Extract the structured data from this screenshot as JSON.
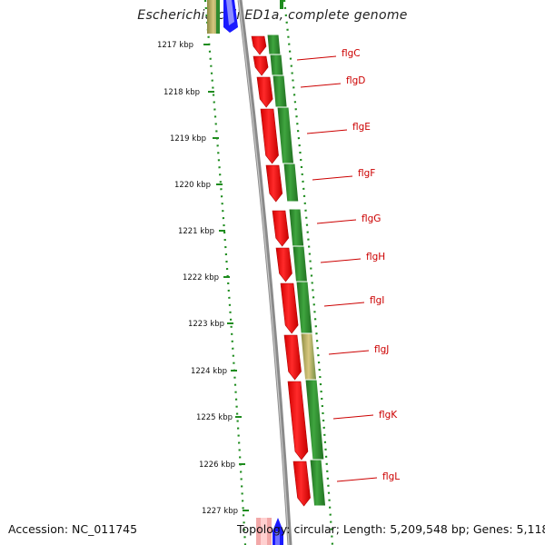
{
  "title": "Escherichia coli ED1a, complete genome",
  "footer": {
    "accession": "Accession: NC_011745",
    "info": "Topology: circular; Length: 5,209,548 bp; Genes: 5,118"
  },
  "scale_ticks": [
    "1217 kbp",
    "1218 kbp",
    "1219 kbp",
    "1220 kbp",
    "1221 kbp",
    "1222 kbp",
    "1223 kbp",
    "1224 kbp",
    "1225 kbp",
    "1226 kbp",
    "1227 kbp"
  ],
  "genes": [
    {
      "name": "flgC",
      "highlight": false
    },
    {
      "name": "flgD",
      "highlight": false
    },
    {
      "name": "flgE",
      "highlight": false
    },
    {
      "name": "flgF",
      "highlight": false
    },
    {
      "name": "flgG",
      "highlight": false
    },
    {
      "name": "flgH",
      "highlight": false
    },
    {
      "name": "flgI",
      "highlight": false
    },
    {
      "name": "flgJ",
      "highlight": true
    },
    {
      "name": "flgK",
      "highlight": false
    },
    {
      "name": "flgL",
      "highlight": false
    }
  ],
  "colors": {
    "gene_arrow": "#ff1a1a",
    "green_track": "#2e8b2e",
    "green_highlight": "#b8a860",
    "backbone": "#8a8a8a",
    "tick": "#1e8c1e",
    "label": "#cc0000",
    "neighbor_blue": "#1a1aff"
  }
}
